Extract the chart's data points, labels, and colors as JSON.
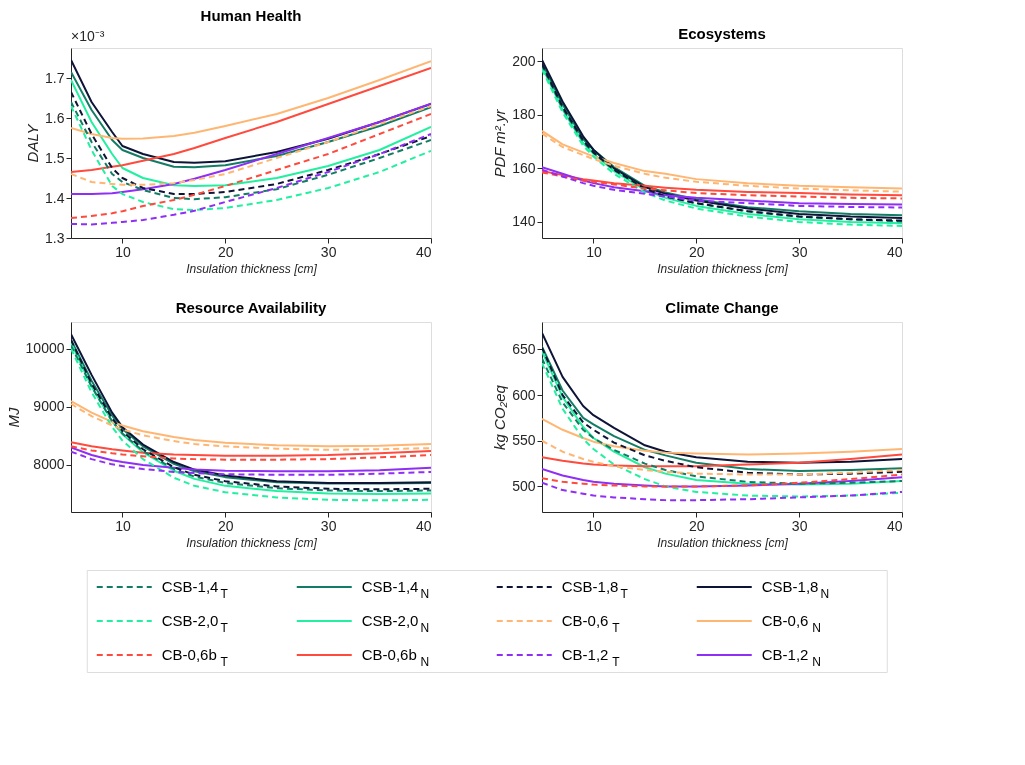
{
  "chart_data": [
    {
      "type": "line",
      "title": "Human Health",
      "xlabel": "Insulation thickness [cm]",
      "ylabel": "DALY",
      "annotations": [
        "×10⁻³"
      ],
      "legend": "bottom",
      "x": [
        5,
        7,
        9,
        10,
        12,
        15,
        17,
        20,
        25,
        30,
        35,
        40
      ],
      "xlim": [
        5,
        40
      ],
      "xticks": [
        10,
        20,
        30,
        40
      ],
      "ylim": [
        1.3,
        1.775
      ],
      "yticks": [
        1.3,
        1.4,
        1.5,
        1.6,
        1.7
      ],
      "series": [
        {
          "name": "CSB-1,4$_{T}$",
          "color": "#127d64",
          "line_style": "dashed",
          "values": [
            1.64,
            1.54,
            1.46,
            1.44,
            1.42,
            1.4,
            1.397,
            1.402,
            1.422,
            1.458,
            1.5,
            1.545
          ]
        },
        {
          "name": "CSB-1,4$_{N}$",
          "color": "#127d64",
          "line_style": "solid",
          "values": [
            1.715,
            1.62,
            1.545,
            1.52,
            1.5,
            1.478,
            1.477,
            1.482,
            1.505,
            1.54,
            1.58,
            1.627
          ]
        },
        {
          "name": "CSB-1,8$_{T}$",
          "color": "#0d1436",
          "line_style": "dashed",
          "values": [
            1.665,
            1.56,
            1.475,
            1.45,
            1.425,
            1.41,
            1.41,
            1.415,
            1.435,
            1.47,
            1.51,
            1.555
          ]
        },
        {
          "name": "CSB-1,8$_{N}$",
          "color": "#0d1436",
          "line_style": "solid",
          "values": [
            1.745,
            1.64,
            1.565,
            1.53,
            1.51,
            1.49,
            1.488,
            1.492,
            1.515,
            1.548,
            1.59,
            1.635
          ]
        },
        {
          "name": "CSB-2,0$_{T}$",
          "color": "#22f0a0",
          "line_style": "dashed",
          "values": [
            1.63,
            1.52,
            1.43,
            1.41,
            1.39,
            1.372,
            1.37,
            1.375,
            1.395,
            1.425,
            1.465,
            1.518
          ]
        },
        {
          "name": "CSB-2,0$_{N}$",
          "color": "#22f0a0",
          "line_style": "solid",
          "values": [
            1.695,
            1.59,
            1.51,
            1.475,
            1.45,
            1.432,
            1.43,
            1.432,
            1.45,
            1.48,
            1.52,
            1.578
          ]
        },
        {
          "name": "CB-0,6$_{T}$",
          "color": "#ffb673",
          "line_style": "dashed",
          "values": [
            1.46,
            1.44,
            1.435,
            1.433,
            1.433,
            1.437,
            1.445,
            1.46,
            1.5,
            1.54,
            1.585,
            1.63
          ]
        },
        {
          "name": "CB-0,6$_{N}$",
          "color": "#ffb673",
          "line_style": "solid",
          "values": [
            1.575,
            1.56,
            1.55,
            1.548,
            1.549,
            1.555,
            1.563,
            1.58,
            1.61,
            1.65,
            1.695,
            1.742
          ]
        },
        {
          "name": "CB-0,6b$_{T}$",
          "color": "#ff4a3d",
          "line_style": "dashed",
          "values": [
            1.35,
            1.355,
            1.362,
            1.367,
            1.38,
            1.395,
            1.408,
            1.43,
            1.47,
            1.51,
            1.56,
            1.61
          ]
        },
        {
          "name": "CB-0,6b$_{N}$",
          "color": "#ff4a3d",
          "line_style": "solid",
          "values": [
            1.465,
            1.47,
            1.478,
            1.482,
            1.493,
            1.51,
            1.525,
            1.55,
            1.59,
            1.635,
            1.68,
            1.725
          ]
        },
        {
          "name": "CB-1,2$_{T}$",
          "color": "#8f2ef5",
          "line_style": "dashed",
          "values": [
            1.335,
            1.334,
            1.338,
            1.34,
            1.345,
            1.358,
            1.368,
            1.39,
            1.425,
            1.465,
            1.51,
            1.56
          ]
        },
        {
          "name": "CB-1,2$_{N}$",
          "color": "#8f2ef5",
          "line_style": "solid",
          "values": [
            1.41,
            1.41,
            1.412,
            1.415,
            1.422,
            1.435,
            1.448,
            1.47,
            1.51,
            1.55,
            1.59,
            1.636
          ]
        }
      ]
    },
    {
      "type": "line",
      "title": "Ecosystems",
      "xlabel": "Insulation thickness [cm]",
      "ylabel": "PDF m².yr",
      "x": [
        5,
        7,
        9,
        10,
        12,
        15,
        17,
        20,
        25,
        30,
        35,
        40
      ],
      "xlim": [
        5,
        40
      ],
      "xticks": [
        10,
        20,
        30,
        40
      ],
      "ylim": [
        134,
        205
      ],
      "yticks": [
        140,
        160,
        180,
        200
      ],
      "series": [
        {
          "name": "CSB-1,4$_{T}$",
          "color": "#127d64",
          "line_style": "dashed",
          "values": [
            198.5,
            182.5,
            170,
            166,
            159.5,
            152.5,
            149.5,
            147,
            144,
            142,
            141,
            140.2
          ]
        },
        {
          "name": "CSB-1,4$_{N}$",
          "color": "#127d64",
          "line_style": "solid",
          "values": [
            199,
            184,
            171,
            167,
            160.5,
            153.5,
            151,
            148.5,
            145.5,
            144,
            143,
            142.5
          ]
        },
        {
          "name": "CSB-1,8$_{T}$",
          "color": "#0d1436",
          "line_style": "dashed",
          "values": [
            199,
            183,
            170.5,
            166,
            159.5,
            152.5,
            149.5,
            147,
            144,
            142,
            141,
            140.5
          ]
        },
        {
          "name": "CSB-1,8$_{N}$",
          "color": "#0d1436",
          "line_style": "solid",
          "values": [
            200.5,
            185,
            172,
            167,
            160,
            153,
            150.5,
            148,
            145,
            143,
            142,
            141.5
          ]
        },
        {
          "name": "CSB-2,0$_{T}$",
          "color": "#22f0a0",
          "line_style": "dashed",
          "values": [
            197,
            181,
            168.5,
            164.5,
            158,
            151,
            148,
            145,
            142,
            140,
            139,
            138.5
          ]
        },
        {
          "name": "CSB-2,0$_{N}$",
          "color": "#22f0a0",
          "line_style": "solid",
          "values": [
            198,
            182,
            169.5,
            165.5,
            159,
            152,
            149,
            146,
            143,
            141,
            140,
            139.5
          ]
        },
        {
          "name": "CB-0,6$_{T}$",
          "color": "#ffb673",
          "line_style": "dashed",
          "values": [
            173,
            168,
            165,
            163.5,
            161,
            158,
            156.5,
            155,
            153.5,
            152.5,
            151.8,
            151.3
          ]
        },
        {
          "name": "CB-0,6$_{N}$",
          "color": "#ffb673",
          "line_style": "solid",
          "values": [
            174,
            169,
            166,
            164.5,
            162,
            159,
            158,
            156,
            154.5,
            153.5,
            153,
            152.5
          ]
        },
        {
          "name": "CB-0,6b$_{T}$",
          "color": "#ff4a3d",
          "line_style": "dashed",
          "values": [
            158.5,
            157,
            155.5,
            155,
            154,
            152.5,
            151.8,
            150.8,
            150,
            149.5,
            149,
            148.8
          ]
        },
        {
          "name": "CB-0,6b$_{N}$",
          "color": "#ff4a3d",
          "line_style": "solid",
          "values": [
            159,
            157.5,
            156,
            155.5,
            154.5,
            153.5,
            152.8,
            152,
            151.2,
            150.8,
            150.3,
            150
          ]
        },
        {
          "name": "CB-1,2$_{T}$",
          "color": "#8f2ef5",
          "line_style": "dashed",
          "values": [
            159.5,
            157,
            154.5,
            153.5,
            152,
            150.5,
            149.5,
            148,
            147,
            146,
            145.6,
            145.4
          ]
        },
        {
          "name": "CB-1,2$_{N}$",
          "color": "#8f2ef5",
          "line_style": "solid",
          "values": [
            160.5,
            158,
            155.5,
            154.5,
            153,
            151.5,
            150,
            149,
            148,
            147,
            146.7,
            146.5
          ]
        }
      ]
    },
    {
      "type": "line",
      "title": "Resource Availability",
      "xlabel": "Insulation thickness [cm]",
      "ylabel": "MJ",
      "x": [
        5,
        7,
        9,
        10,
        12,
        15,
        17,
        20,
        25,
        30,
        35,
        40
      ],
      "xlim": [
        5,
        40
      ],
      "xticks": [
        10,
        20,
        30,
        40
      ],
      "ylim": [
        7190,
        10460
      ],
      "yticks": [
        8000,
        9000,
        10000
      ],
      "series": [
        {
          "name": "CSB-1,4$_{T}$",
          "color": "#127d64",
          "line_style": "dashed",
          "values": [
            10050,
            9350,
            8750,
            8540,
            8240,
            7930,
            7800,
            7690,
            7600,
            7560,
            7550,
            7560
          ]
        },
        {
          "name": "CSB-1,4$_{N}$",
          "color": "#127d64",
          "line_style": "solid",
          "values": [
            10150,
            9450,
            8850,
            8620,
            8320,
            8020,
            7890,
            7790,
            7700,
            7680,
            7680,
            7690
          ]
        },
        {
          "name": "CSB-1,8$_{T}$",
          "color": "#0d1436",
          "line_style": "dashed",
          "values": [
            10150,
            9400,
            8800,
            8580,
            8270,
            7960,
            7830,
            7720,
            7630,
            7590,
            7580,
            7590
          ]
        },
        {
          "name": "CSB-1,8$_{N}$",
          "color": "#0d1436",
          "line_style": "solid",
          "values": [
            10250,
            9550,
            8900,
            8650,
            8350,
            8050,
            7920,
            7820,
            7720,
            7690,
            7690,
            7700
          ]
        },
        {
          "name": "CSB-2,0$_{T}$",
          "color": "#22f0a0",
          "line_style": "dashed",
          "values": [
            10000,
            9250,
            8650,
            8420,
            8100,
            7780,
            7640,
            7530,
            7440,
            7400,
            7390,
            7400
          ]
        },
        {
          "name": "CSB-2,0$_{N}$",
          "color": "#22f0a0",
          "line_style": "solid",
          "values": [
            10100,
            9350,
            8750,
            8530,
            8220,
            7900,
            7760,
            7640,
            7550,
            7510,
            7500,
            7510
          ]
        },
        {
          "name": "CB-0,6$_{T}$",
          "color": "#ffb673",
          "line_style": "dashed",
          "values": [
            9050,
            8840,
            8680,
            8610,
            8510,
            8410,
            8360,
            8320,
            8280,
            8260,
            8270,
            8290
          ]
        },
        {
          "name": "CB-0,6$_{N}$",
          "color": "#ffb673",
          "line_style": "solid",
          "values": [
            9100,
            8900,
            8740,
            8680,
            8580,
            8480,
            8430,
            8380,
            8340,
            8320,
            8330,
            8360
          ]
        },
        {
          "name": "CB-0,6b$_{T}$",
          "color": "#ff4a3d",
          "line_style": "dashed",
          "values": [
            8320,
            8250,
            8200,
            8180,
            8150,
            8110,
            8100,
            8090,
            8090,
            8100,
            8130,
            8170
          ]
        },
        {
          "name": "CB-0,6b$_{N}$",
          "color": "#ff4a3d",
          "line_style": "solid",
          "values": [
            8390,
            8320,
            8270,
            8250,
            8210,
            8180,
            8170,
            8160,
            8160,
            8170,
            8200,
            8240
          ]
        },
        {
          "name": "CB-1,2$_{T}$",
          "color": "#8f2ef5",
          "line_style": "dashed",
          "values": [
            8230,
            8100,
            8010,
            7980,
            7930,
            7880,
            7860,
            7840,
            7830,
            7830,
            7850,
            7880
          ]
        },
        {
          "name": "CB-1,2$_{N}$",
          "color": "#8f2ef5",
          "line_style": "solid",
          "values": [
            8300,
            8170,
            8080,
            8050,
            8000,
            7950,
            7920,
            7900,
            7890,
            7890,
            7910,
            7950
          ]
        }
      ]
    },
    {
      "type": "line",
      "title": "Climate Change",
      "xlabel": "Insulation thickness [cm]",
      "ylabel": "kg CO₂eq",
      "x": [
        5,
        7,
        9,
        10,
        12,
        15,
        17,
        20,
        25,
        30,
        35,
        40
      ],
      "xlim": [
        5,
        40
      ],
      "xticks": [
        10,
        20,
        30,
        40
      ],
      "ylim": [
        472,
        680
      ],
      "yticks": [
        500,
        550,
        600,
        650
      ],
      "series": [
        {
          "name": "CSB-1,4$_{T}$",
          "color": "#127d64",
          "line_style": "dashed",
          "values": [
            640,
            592,
            562,
            553,
            540,
            525,
            518,
            511,
            505,
            503,
            504,
            506
          ]
        },
        {
          "name": "CSB-1,4$_{N}$",
          "color": "#127d64",
          "line_style": "solid",
          "values": [
            653,
            605,
            575,
            568,
            555,
            540,
            534,
            526,
            519,
            517,
            518,
            520
          ]
        },
        {
          "name": "CSB-1,8$_{T}$",
          "color": "#0d1436",
          "line_style": "dashed",
          "values": [
            652,
            600,
            570,
            562,
            548,
            534,
            528,
            521,
            515,
            513,
            514,
            516
          ]
        },
        {
          "name": "CSB-1,8$_{N}$",
          "color": "#0d1436",
          "line_style": "solid",
          "values": [
            668,
            620,
            588,
            578,
            564,
            545,
            538,
            532,
            527,
            526,
            527,
            530
          ]
        },
        {
          "name": "CSB-2,0$_{T}$",
          "color": "#22f0a0",
          "line_style": "dashed",
          "values": [
            635,
            585,
            552,
            541,
            524,
            508,
            500,
            494,
            490,
            489,
            490,
            493
          ]
        },
        {
          "name": "CSB-2,0$_{N}$",
          "color": "#22f0a0",
          "line_style": "solid",
          "values": [
            648,
            598,
            565,
            553,
            538,
            521,
            514,
            507,
            503,
            502,
            503,
            506
          ]
        },
        {
          "name": "CB-0,6$_{T}$",
          "color": "#ffb673",
          "line_style": "dashed",
          "values": [
            550,
            538,
            530,
            527,
            522,
            518,
            516,
            514,
            513,
            513,
            515,
            518
          ]
        },
        {
          "name": "CB-0,6$_{N}$",
          "color": "#ffb673",
          "line_style": "solid",
          "values": [
            574,
            562,
            553,
            549,
            544,
            539,
            537,
            536,
            535,
            536,
            538,
            541
          ]
        },
        {
          "name": "CB-0,6b$_{T}$",
          "color": "#ff4a3d",
          "line_style": "dashed",
          "values": [
            509,
            505,
            503,
            502,
            501,
            500,
            500,
            500,
            501,
            504,
            508,
            513
          ]
        },
        {
          "name": "CB-0,6b$_{N}$",
          "color": "#ff4a3d",
          "line_style": "solid",
          "values": [
            532,
            528,
            525,
            524,
            523,
            522,
            522,
            522,
            524,
            526,
            530,
            535
          ]
        },
        {
          "name": "CB-1,2$_{T}$",
          "color": "#8f2ef5",
          "line_style": "dashed",
          "values": [
            504,
            496,
            492,
            490,
            488,
            486,
            485,
            485,
            486,
            488,
            490,
            494
          ]
        },
        {
          "name": "CB-1,2$_{N}$",
          "color": "#8f2ef5",
          "line_style": "solid",
          "values": [
            519,
            512,
            507,
            505,
            503,
            501,
            500,
            500,
            501,
            503,
            506,
            510
          ]
        }
      ]
    }
  ]
}
